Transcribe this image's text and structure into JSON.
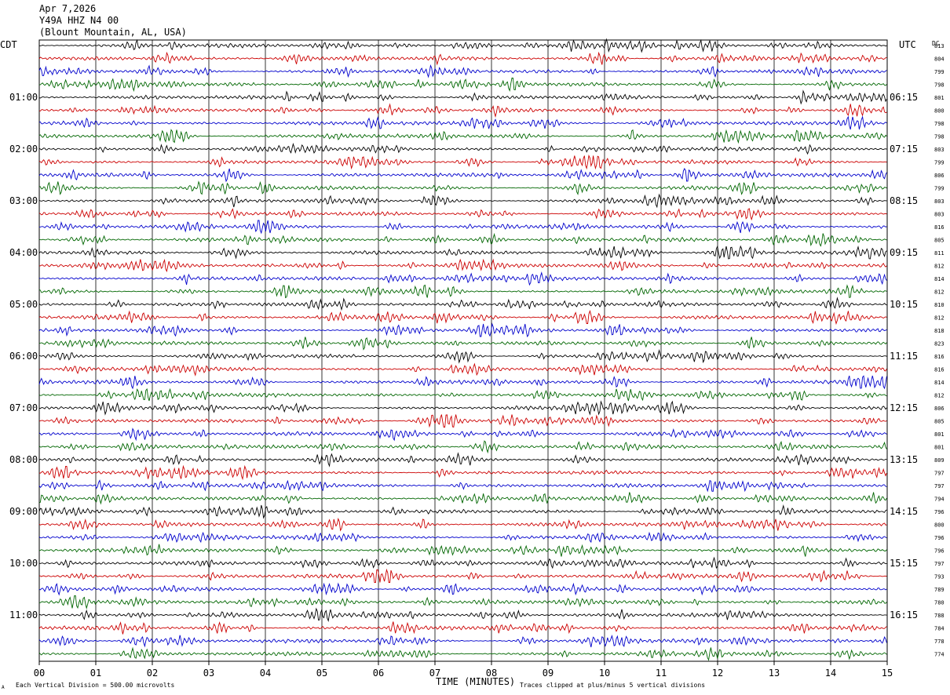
{
  "header": {
    "date": "Apr 7,2026",
    "station": "Y49A HHZ N4 00",
    "location": "(Blount Mountain, AL, USA)"
  },
  "left_timezone": "CDT",
  "right_timezone": "UTC",
  "dc_label": "DC",
  "footer": {
    "scale_note": "Each Vertical Division =  500.00 microvolts",
    "clip_note": "Traces clipped at plus/minus 5 vertical divisions",
    "mark": "A"
  },
  "chart_data": {
    "type": "line",
    "title": "",
    "xlabel": "TIME (MINUTES)",
    "ylabel": "",
    "xlim": [
      0,
      15
    ],
    "x_ticks": [
      "00",
      "01",
      "02",
      "03",
      "04",
      "05",
      "06",
      "07",
      "08",
      "09",
      "10",
      "11",
      "12",
      "13",
      "14",
      "15"
    ],
    "left_hour_labels": [
      "01:00",
      "02:00",
      "03:00",
      "04:00",
      "05:00",
      "06:00",
      "07:00",
      "08:00",
      "09:00",
      "10:00",
      "11:00"
    ],
    "right_hour_labels": [
      "06:15",
      "07:15",
      "08:15",
      "09:15",
      "10:15",
      "11:15",
      "12:15",
      "13:15",
      "14:15",
      "15:15",
      "16:15"
    ],
    "trace_colors": [
      "#000000",
      "#cc0000",
      "#0000cc",
      "#006600"
    ],
    "dc_offsets": [
      813,
      804,
      799,
      798,
      801,
      800,
      798,
      798,
      803,
      799,
      806,
      799,
      803,
      803,
      816,
      805,
      811,
      812,
      814,
      812,
      810,
      812,
      818,
      823,
      816,
      816,
      814,
      812,
      806,
      805,
      801,
      801,
      809,
      797,
      797,
      794,
      796,
      800,
      796,
      796,
      797,
      793,
      789,
      780,
      788,
      784,
      778,
      774
    ],
    "grid": true
  }
}
